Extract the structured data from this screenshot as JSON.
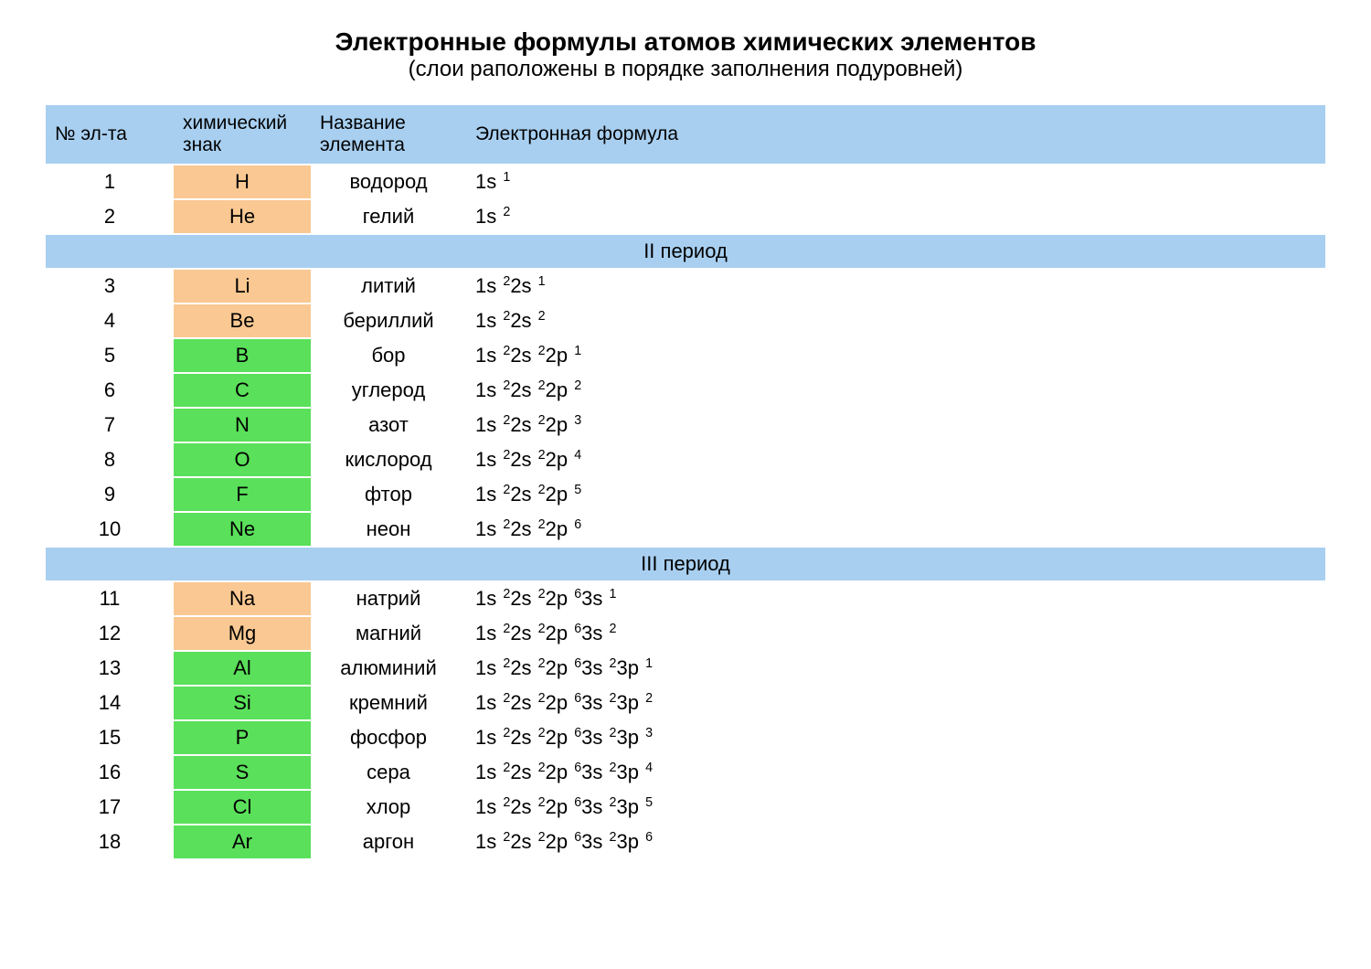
{
  "title": "Электронные формулы атомов химических элементов",
  "subtitle": "(слои раположены в порядке заполнения подуровней)",
  "colors": {
    "header_bg": "#a8cff0",
    "period_bg": "#a8cff0",
    "symbol_orange": "#fac892",
    "symbol_green": "#5ae05a",
    "text": "#000000",
    "background": "#ffffff"
  },
  "columns": {
    "num": "№ эл-та",
    "symbol": "химический знак",
    "name": "Название элемента",
    "formula": "Электронная формула"
  },
  "rows": [
    {
      "type": "element",
      "num": "1",
      "symbol": "H",
      "symbol_color": "orange",
      "name": "водород",
      "formula": [
        [
          "1s",
          "1"
        ]
      ]
    },
    {
      "type": "element",
      "num": "2",
      "symbol": "He",
      "symbol_color": "orange",
      "name": "гелий",
      "formula": [
        [
          "1s",
          "2"
        ]
      ]
    },
    {
      "type": "period",
      "label": "II период"
    },
    {
      "type": "element",
      "num": "3",
      "symbol": "Li",
      "symbol_color": "orange",
      "name": "литий",
      "formula": [
        [
          "1s",
          "2"
        ],
        [
          "2s",
          "1"
        ]
      ]
    },
    {
      "type": "element",
      "num": "4",
      "symbol": "Be",
      "symbol_color": "orange",
      "name": "бериллий",
      "formula": [
        [
          "1s",
          "2"
        ],
        [
          "2s",
          "2"
        ]
      ]
    },
    {
      "type": "element",
      "num": "5",
      "symbol": "B",
      "symbol_color": "green",
      "name": "бор",
      "formula": [
        [
          "1s",
          "2"
        ],
        [
          "2s",
          "2"
        ],
        [
          "2p",
          "1"
        ]
      ]
    },
    {
      "type": "element",
      "num": "6",
      "symbol": "C",
      "symbol_color": "green",
      "name": "углерод",
      "formula": [
        [
          "1s",
          "2"
        ],
        [
          "2s",
          "2"
        ],
        [
          "2p",
          "2"
        ]
      ]
    },
    {
      "type": "element",
      "num": "7",
      "symbol": "N",
      "symbol_color": "green",
      "name": "азот",
      "formula": [
        [
          "1s",
          "2"
        ],
        [
          "2s",
          "2"
        ],
        [
          "2p",
          "3"
        ]
      ]
    },
    {
      "type": "element",
      "num": "8",
      "symbol": "O",
      "symbol_color": "green",
      "name": "кислород",
      "formula": [
        [
          "1s",
          "2"
        ],
        [
          "2s",
          "2"
        ],
        [
          "2p",
          "4"
        ]
      ]
    },
    {
      "type": "element",
      "num": "9",
      "symbol": "F",
      "symbol_color": "green",
      "name": "фтор",
      "formula": [
        [
          "1s",
          "2"
        ],
        [
          "2s",
          "2"
        ],
        [
          "2p",
          "5"
        ]
      ]
    },
    {
      "type": "element",
      "num": "10",
      "symbol": "Ne",
      "symbol_color": "green",
      "name": "неон",
      "formula": [
        [
          "1s",
          "2"
        ],
        [
          "2s",
          "2"
        ],
        [
          "2p",
          "6"
        ]
      ]
    },
    {
      "type": "period",
      "label": "III период"
    },
    {
      "type": "element",
      "num": "11",
      "symbol": "Na",
      "symbol_color": "orange",
      "name": "натрий",
      "formula": [
        [
          "1s",
          "2"
        ],
        [
          "2s",
          "2"
        ],
        [
          "2p",
          "6"
        ],
        [
          "3s",
          "1"
        ]
      ]
    },
    {
      "type": "element",
      "num": "12",
      "symbol": "Mg",
      "symbol_color": "orange",
      "name": "магний",
      "formula": [
        [
          "1s",
          "2"
        ],
        [
          "2s",
          "2"
        ],
        [
          "2p",
          "6"
        ],
        [
          "3s",
          "2"
        ]
      ]
    },
    {
      "type": "element",
      "num": "13",
      "symbol": "Al",
      "symbol_color": "green",
      "name": "алюминий",
      "formula": [
        [
          "1s",
          "2"
        ],
        [
          "2s",
          "2"
        ],
        [
          "2p",
          "6"
        ],
        [
          "3s",
          "2"
        ],
        [
          "3p",
          "1"
        ]
      ]
    },
    {
      "type": "element",
      "num": "14",
      "symbol": "Si",
      "symbol_color": "green",
      "name": "кремний",
      "formula": [
        [
          "1s",
          "2"
        ],
        [
          "2s",
          "2"
        ],
        [
          "2p",
          "6"
        ],
        [
          "3s",
          "2"
        ],
        [
          "3p",
          "2"
        ]
      ]
    },
    {
      "type": "element",
      "num": "15",
      "symbol": "P",
      "symbol_color": "green",
      "name": "фосфор",
      "formula": [
        [
          "1s",
          "2"
        ],
        [
          "2s",
          "2"
        ],
        [
          "2p",
          "6"
        ],
        [
          "3s",
          "2"
        ],
        [
          "3p",
          "3"
        ]
      ]
    },
    {
      "type": "element",
      "num": "16",
      "symbol": "S",
      "symbol_color": "green",
      "name": "сера",
      "formula": [
        [
          "1s",
          "2"
        ],
        [
          "2s",
          "2"
        ],
        [
          "2p",
          "6"
        ],
        [
          "3s",
          "2"
        ],
        [
          "3p",
          "4"
        ]
      ]
    },
    {
      "type": "element",
      "num": "17",
      "symbol": "Cl",
      "symbol_color": "green",
      "name": "хлор",
      "formula": [
        [
          "1s",
          "2"
        ],
        [
          "2s",
          "2"
        ],
        [
          "2p",
          "6"
        ],
        [
          "3s",
          "2"
        ],
        [
          "3p",
          "5"
        ]
      ]
    },
    {
      "type": "element",
      "num": "18",
      "symbol": "Ar",
      "symbol_color": "green",
      "name": "аргон",
      "formula": [
        [
          "1s",
          "2"
        ],
        [
          "2s",
          "2"
        ],
        [
          "2p",
          "6"
        ],
        [
          "3s",
          "2"
        ],
        [
          "3p",
          "6"
        ]
      ]
    }
  ]
}
